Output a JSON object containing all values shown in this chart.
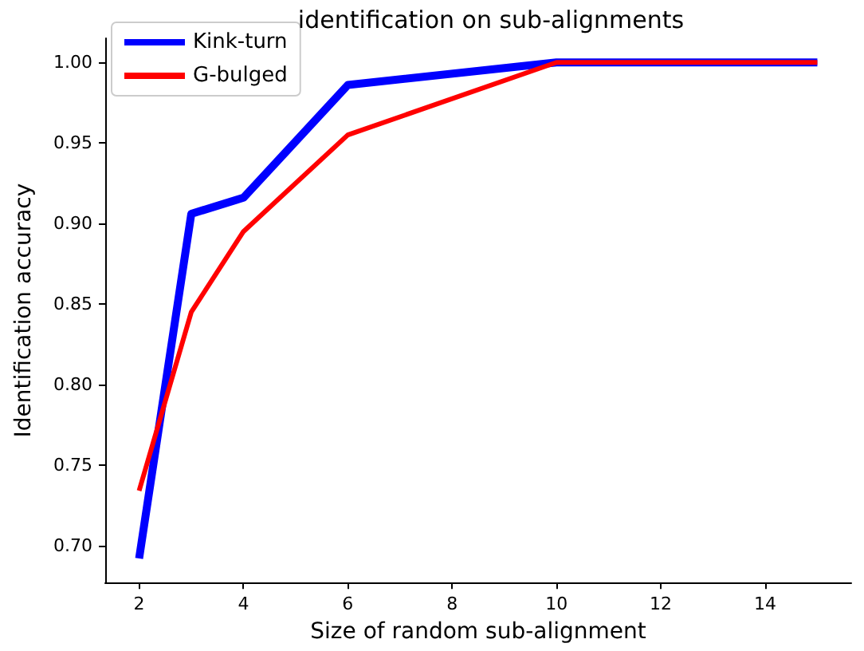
{
  "chart_data": {
    "type": "line",
    "title": "identification on sub-alignments",
    "xlabel": "Size of random sub-alignment",
    "ylabel": "Identification accuracy",
    "x": [
      2,
      3,
      4,
      6,
      10,
      15
    ],
    "series": [
      {
        "name": "Kink-turn",
        "color": "#0000ff",
        "values": [
          0.692,
          0.906,
          0.916,
          0.986,
          1.0,
          1.0
        ]
      },
      {
        "name": "G-bulged",
        "color": "#ff0000",
        "values": [
          0.734,
          0.845,
          0.895,
          0.955,
          1.0,
          1.0
        ]
      }
    ],
    "xlim": [
      1.35,
      15.65
    ],
    "xticks": [
      2,
      4,
      6,
      8,
      10,
      12,
      14
    ],
    "ylim": [
      0.677,
      1.015
    ],
    "yticks": [
      {
        "value": 0.7,
        "label": "0.70"
      },
      {
        "value": 0.75,
        "label": "0.75"
      },
      {
        "value": 0.8,
        "label": "0.80"
      },
      {
        "value": 0.85,
        "label": "0.85"
      },
      {
        "value": 0.9,
        "label": "0.90"
      },
      {
        "value": 0.95,
        "label": "0.95"
      },
      {
        "value": 1.0,
        "label": "1.00"
      }
    ],
    "grid": false,
    "legend": "top left",
    "marker": "none",
    "line_style": "solid"
  }
}
